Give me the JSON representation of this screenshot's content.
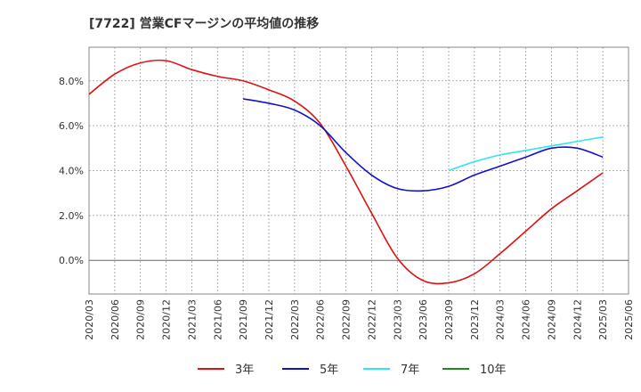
{
  "chart_data": {
    "type": "line",
    "title": "[7722]  営業CFマージンの平均値の推移",
    "xlabel": "",
    "ylabel": "",
    "ylim": [
      -1.5,
      9.5
    ],
    "yticks": [
      0,
      2,
      4,
      6,
      8
    ],
    "ytick_labels": [
      "0.0%",
      "2.0%",
      "4.0%",
      "6.0%",
      "8.0%"
    ],
    "x_tick_labels": [
      "2020/03",
      "2020/06",
      "2020/09",
      "2020/12",
      "2021/03",
      "2021/06",
      "2021/09",
      "2021/12",
      "2022/03",
      "2022/06",
      "2022/09",
      "2022/12",
      "2023/03",
      "2023/06",
      "2023/09",
      "2023/12",
      "2024/03",
      "2024/06",
      "2024/09",
      "2024/12",
      "2025/03",
      "2025/06"
    ],
    "grid": true,
    "legend_position": "bottom",
    "series": [
      {
        "name": "3年",
        "color": "#dd1111",
        "x": [
          "2020/03",
          "2020/06",
          "2020/09",
          "2020/12",
          "2021/03",
          "2021/06",
          "2021/09",
          "2021/12",
          "2022/03",
          "2022/06",
          "2022/09",
          "2022/12",
          "2023/03",
          "2023/06",
          "2023/09",
          "2023/12",
          "2024/03",
          "2024/06",
          "2024/09",
          "2024/12",
          "2025/03"
        ],
        "values": [
          7.4,
          8.3,
          8.8,
          8.9,
          8.5,
          8.2,
          8.0,
          7.6,
          7.1,
          6.1,
          4.2,
          2.1,
          0.1,
          -0.9,
          -1.0,
          -0.6,
          0.3,
          1.3,
          2.3,
          3.1,
          3.9
        ]
      },
      {
        "name": "5年",
        "color": "#1111cc",
        "x": [
          "2021/09",
          "2021/12",
          "2022/03",
          "2022/06",
          "2022/09",
          "2022/12",
          "2023/03",
          "2023/06",
          "2023/09",
          "2023/12",
          "2024/03",
          "2024/06",
          "2024/09",
          "2024/12",
          "2025/03"
        ],
        "values": [
          7.2,
          7.0,
          6.7,
          6.0,
          4.8,
          3.8,
          3.2,
          3.1,
          3.3,
          3.8,
          4.2,
          4.6,
          5.0,
          5.0,
          4.6
        ]
      },
      {
        "name": "7年",
        "color": "#33e5f0",
        "x": [
          "2023/09",
          "2023/12",
          "2024/03",
          "2024/06",
          "2024/09",
          "2024/12",
          "2025/03"
        ],
        "values": [
          4.0,
          4.4,
          4.7,
          4.9,
          5.1,
          5.3,
          5.5
        ]
      },
      {
        "name": "10年",
        "color": "#228822",
        "x": [],
        "values": []
      }
    ]
  }
}
